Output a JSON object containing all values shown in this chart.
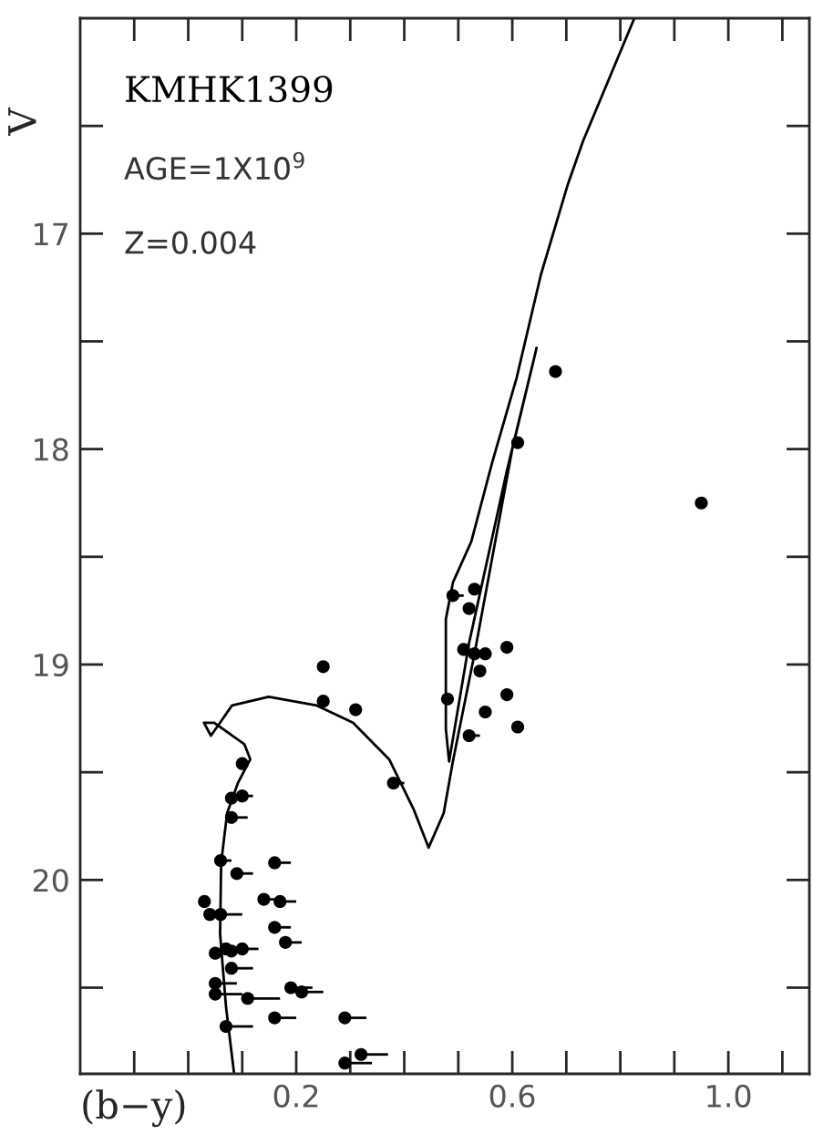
{
  "chart_data": {
    "type": "scatter",
    "xlabel": "(b−y)",
    "ylabel": "V",
    "annotations": [
      "KMHK1399",
      "AGE=1X10$^{9}$",
      "Z=0.004"
    ],
    "xlim": [
      -0.2,
      1.15
    ],
    "ylim": [
      20.9,
      16.0
    ],
    "xticks": [
      {
        "value": -0.1,
        "label": null
      },
      {
        "value": 0.0,
        "label": null
      },
      {
        "value": 0.1,
        "label": null
      },
      {
        "value": 0.2,
        "label": "0.2"
      },
      {
        "value": 0.3,
        "label": null
      },
      {
        "value": 0.4,
        "label": null
      },
      {
        "value": 0.5,
        "label": null
      },
      {
        "value": 0.6,
        "label": "0.6"
      },
      {
        "value": 0.7,
        "label": null
      },
      {
        "value": 0.8,
        "label": null
      },
      {
        "value": 0.9,
        "label": null
      },
      {
        "value": 1.0,
        "label": "1.0"
      },
      {
        "value": 1.1,
        "label": null
      }
    ],
    "yticks": [
      {
        "value": 16.5,
        "label": null
      },
      17,
      {
        "value": 17.5,
        "label": null
      },
      18,
      {
        "value": 18.5,
        "label": null
      },
      19,
      {
        "value": 19.5,
        "label": null
      },
      20,
      {
        "value": 20.5,
        "label": null
      }
    ],
    "grid": false,
    "legend": false,
    "series": [
      {
        "type": "line",
        "color": "#000000",
        "marker": "none",
        "line_style": "solid",
        "x": [
          0.085,
          0.07,
          0.059,
          0.061,
          0.072,
          0.092,
          0.115,
          0.104,
          0.048,
          0.029,
          0.042,
          0.059,
          0.081,
          0.149,
          0.238,
          0.305,
          0.372,
          0.417,
          0.445,
          0.473,
          0.49,
          0.53,
          0.6,
          0.645,
          0.59,
          0.52,
          0.483,
          0.477,
          0.477,
          0.49,
          0.524,
          0.563,
          0.608,
          0.653,
          0.703,
          0.731,
          0.826
        ],
        "values": [
          20.9,
          20.59,
          20.25,
          19.92,
          19.69,
          19.55,
          19.44,
          19.37,
          19.27,
          19.27,
          19.33,
          19.27,
          19.19,
          19.15,
          19.19,
          19.27,
          19.44,
          19.67,
          19.85,
          19.69,
          19.45,
          18.95,
          18.0,
          17.53,
          18.1,
          18.9,
          19.45,
          19.3,
          18.79,
          18.62,
          18.43,
          18.06,
          17.67,
          17.19,
          16.77,
          16.57,
          16.0
        ]
      },
      {
        "type": "scatter",
        "color": "#000000",
        "marker": "circle",
        "x": [
          0.25,
          0.25,
          0.31,
          0.38,
          0.48,
          0.1,
          0.09,
          0.08,
          0.1,
          0.08,
          0.06,
          0.09,
          0.16,
          0.03,
          0.04,
          0.06,
          0.14,
          0.17,
          0.16,
          0.18,
          0.05,
          0.07,
          0.08,
          0.1,
          0.08,
          0.05,
          0.05,
          0.11,
          0.19,
          0.21,
          0.07,
          0.16,
          0.29,
          0.32,
          0.29,
          0.68,
          0.61,
          0.95,
          0.49,
          0.53,
          0.52,
          0.51,
          0.53,
          0.55,
          0.59,
          0.54,
          0.59,
          0.55,
          0.52,
          0.61
        ],
        "values": [
          19.01,
          19.17,
          19.21,
          19.55,
          19.16,
          19.46,
          null,
          19.62,
          19.61,
          19.71,
          19.91,
          19.97,
          19.92,
          20.1,
          20.16,
          20.16,
          20.09,
          20.1,
          20.22,
          20.29,
          20.34,
          20.32,
          20.33,
          20.32,
          20.41,
          20.48,
          20.53,
          20.55,
          20.5,
          20.52,
          20.68,
          20.64,
          20.64,
          20.81,
          20.85,
          17.64,
          17.97,
          18.25,
          18.68,
          18.65,
          18.74,
          18.93,
          18.95,
          18.95,
          18.92,
          19.03,
          19.14,
          19.22,
          19.33,
          19.29
        ],
        "xerrors": [
          [
            0.25,
            0.26
          ],
          [
            0.25,
            0.26
          ],
          [
            0.31,
            0.32
          ],
          [
            0.38,
            0.4
          ],
          [
            0.48,
            0.49
          ],
          null,
          null,
          [
            0.08,
            0.11
          ],
          [
            0.1,
            0.12
          ],
          [
            0.08,
            0.11
          ],
          [
            0.06,
            0.08
          ],
          [
            0.09,
            0.12
          ],
          [
            0.16,
            0.19
          ],
          [
            0.03,
            0.04
          ],
          [
            0.04,
            0.06
          ],
          [
            0.06,
            0.1
          ],
          [
            0.14,
            0.16
          ],
          [
            0.17,
            0.2
          ],
          [
            0.16,
            0.19
          ],
          [
            0.18,
            0.21
          ],
          [
            0.05,
            0.07
          ],
          [
            0.07,
            0.1
          ],
          [
            0.08,
            0.1
          ],
          [
            0.1,
            0.13
          ],
          [
            0.08,
            0.12
          ],
          [
            0.05,
            0.09
          ],
          [
            0.05,
            0.1
          ],
          [
            0.11,
            0.17
          ],
          [
            0.19,
            0.23
          ],
          [
            0.21,
            0.25
          ],
          [
            0.07,
            0.12
          ],
          [
            0.16,
            0.2
          ],
          [
            0.29,
            0.33
          ],
          [
            0.32,
            0.37
          ],
          [
            0.29,
            0.34
          ],
          null,
          null,
          null,
          [
            0.49,
            0.51
          ],
          [
            0.53,
            0.54
          ],
          [
            0.52,
            0.53
          ],
          [
            0.51,
            0.52
          ],
          [
            0.53,
            0.54
          ],
          [
            0.55,
            0.56
          ],
          [
            0.59,
            0.6
          ],
          [
            0.54,
            0.55
          ],
          [
            0.59,
            0.6
          ],
          [
            0.55,
            0.56
          ],
          [
            0.52,
            0.54
          ],
          [
            0.61,
            0.62
          ]
        ]
      }
    ]
  }
}
